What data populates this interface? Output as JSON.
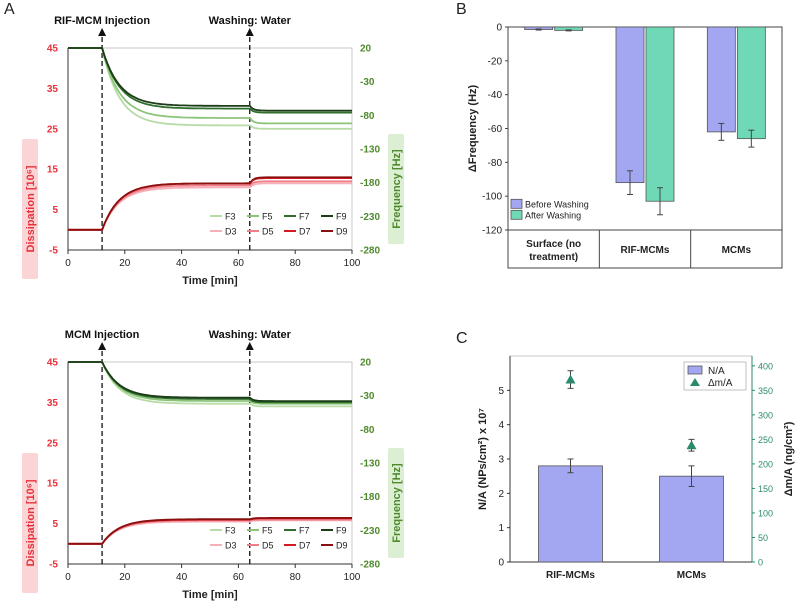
{
  "panels": {
    "A": "A",
    "B": "B",
    "C": "C"
  },
  "colors": {
    "F3": "#b7dca8",
    "F5": "#8cc47a",
    "F7": "#2f6e2c",
    "F9": "#1d3d18",
    "D3": "#f6b0b8",
    "D5": "#f07f8a",
    "D7": "#d51a22",
    "D9": "#8a1010",
    "dissipation_axis": "#e8303a",
    "frequency_axis": "#4f8a2e",
    "bar_blue": "#a3a7f2",
    "bar_teal": "#6fd8b6",
    "marker": "#2b8a6e"
  },
  "chart_data": [
    {
      "id": "A-top",
      "type": "line",
      "xlabel": "Time [min]",
      "ylabel_left": "Dissipation [10⁶]",
      "ylabel_right": "Frequency [Hz]",
      "xlim": [
        0,
        100
      ],
      "x_ticks": [
        0,
        20,
        40,
        60,
        80,
        100
      ],
      "ylim_left": [
        -5,
        45
      ],
      "y_ticks_left": [
        -5,
        5,
        15,
        25,
        35,
        45
      ],
      "ylim_right": [
        -280,
        20
      ],
      "y_ticks_right": [
        -280,
        -230,
        -180,
        -130,
        -80,
        -30,
        20
      ],
      "annotations": [
        {
          "x": 12,
          "label": "RIF-MCM Injection"
        },
        {
          "x": 64,
          "label": "Washing: Water"
        }
      ],
      "legend": {
        "frequency": [
          "F3",
          "F5",
          "F7",
          "F9"
        ],
        "dissipation": [
          "D3",
          "D5",
          "D7",
          "D9"
        ]
      },
      "frequency_series": {
        "F3": {
          "start": 0,
          "end_injection": -115,
          "end_wash": -120
        },
        "F5": {
          "start": 0,
          "end_injection": -104,
          "end_wash": -112
        },
        "F7": {
          "start": 0,
          "end_injection": -90,
          "end_wash": -96
        },
        "F9": {
          "start": 0,
          "end_injection": -86,
          "end_wash": -93
        }
      },
      "dissipation_series": {
        "D3": {
          "start": 0,
          "end_injection": 10.5,
          "end_wash": 11.5
        },
        "D5": {
          "start": 0,
          "end_injection": 11,
          "end_wash": 12
        },
        "D7": {
          "start": 0,
          "end_injection": 11.5,
          "end_wash": 12.8
        },
        "D9": {
          "start": 0,
          "end_injection": 11.5,
          "end_wash": 13
        }
      }
    },
    {
      "id": "A-bottom",
      "type": "line",
      "xlabel": "Time [min]",
      "ylabel_left": "Dissipation [10⁶]",
      "ylabel_right": "Frequency [Hz]",
      "xlim": [
        0,
        100
      ],
      "x_ticks": [
        0,
        20,
        40,
        60,
        80,
        100
      ],
      "ylim_left": [
        -5,
        45
      ],
      "y_ticks_left": [
        -5,
        5,
        15,
        25,
        35,
        45
      ],
      "ylim_right": [
        -280,
        20
      ],
      "y_ticks_right": [
        -280,
        -230,
        -180,
        -130,
        -80,
        -30,
        20
      ],
      "annotations": [
        {
          "x": 12,
          "label": "MCM Injection"
        },
        {
          "x": 64,
          "label": "Washing: Water"
        }
      ],
      "legend": {
        "frequency": [
          "F3",
          "F5",
          "F7",
          "F9"
        ],
        "dissipation": [
          "D3",
          "D5",
          "D7",
          "D9"
        ]
      },
      "frequency_series": {
        "F3": {
          "start": 0,
          "end_injection": -62,
          "end_wash": -66
        },
        "F5": {
          "start": 0,
          "end_injection": -58,
          "end_wash": -62
        },
        "F7": {
          "start": 0,
          "end_injection": -55,
          "end_wash": -60
        },
        "F9": {
          "start": 0,
          "end_injection": -53,
          "end_wash": -58
        }
      },
      "dissipation_series": {
        "D3": {
          "start": 0,
          "end_injection": 5.5,
          "end_wash": 5.8
        },
        "D5": {
          "start": 0,
          "end_injection": 5.8,
          "end_wash": 6
        },
        "D7": {
          "start": 0,
          "end_injection": 6,
          "end_wash": 6.3
        },
        "D9": {
          "start": 0,
          "end_injection": 6.1,
          "end_wash": 6.4
        }
      }
    },
    {
      "id": "B",
      "type": "bar",
      "ylabel": "ΔFrequency (Hz)",
      "ylim": [
        -120,
        0
      ],
      "y_ticks": [
        0,
        -20,
        -40,
        -60,
        -80,
        -100,
        -120
      ],
      "categories": [
        "Surface (no treatment)",
        "RIF-MCMs",
        "MCMs"
      ],
      "category_lines": [
        [
          "Surface (no",
          "treatment)"
        ],
        [
          "RIF-MCMs"
        ],
        [
          "MCMs"
        ]
      ],
      "series": [
        {
          "name": "Before Washing",
          "values": [
            -1.5,
            -92,
            -62
          ],
          "errors": [
            0.3,
            7,
            5
          ]
        },
        {
          "name": "After Washing",
          "values": [
            -2,
            -103,
            -66
          ],
          "errors": [
            0.3,
            8,
            5
          ]
        }
      ],
      "legend_position": "bottom-left"
    },
    {
      "id": "C",
      "type": "bar",
      "ylabel_left": "N/A (NPs/cm²) x 10⁷",
      "ylabel_right": "Δm/A (ng/cm²)",
      "ylim_left": [
        0,
        6
      ],
      "y_ticks_left": [
        0,
        1,
        2,
        3,
        4,
        5
      ],
      "ylim_right": [
        0,
        420
      ],
      "y_ticks_right": [
        0,
        50,
        100,
        150,
        200,
        250,
        300,
        350,
        400
      ],
      "categories": [
        "RIF-MCMs",
        "MCMs"
      ],
      "series": [
        {
          "name": "N/A",
          "axis": "left",
          "kind": "bar",
          "values": [
            2.8,
            2.5
          ],
          "errors": [
            0.2,
            0.3
          ]
        },
        {
          "name": "Δm/A",
          "axis": "right",
          "kind": "marker",
          "values": [
            372,
            238
          ],
          "errors": [
            18,
            12
          ]
        }
      ],
      "legend_position": "top-right"
    }
  ]
}
